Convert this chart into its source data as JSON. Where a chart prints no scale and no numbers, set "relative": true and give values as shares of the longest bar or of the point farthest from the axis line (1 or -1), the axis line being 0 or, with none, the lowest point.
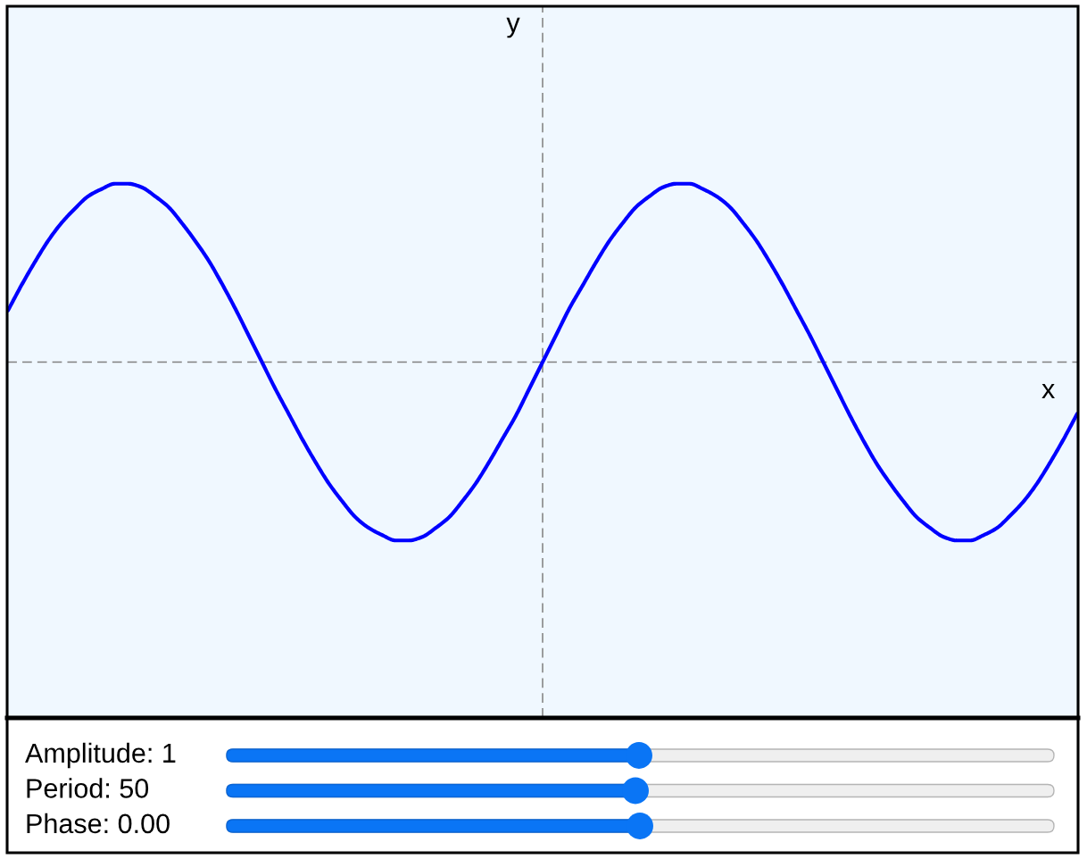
{
  "chart_data": {
    "type": "line",
    "relative": true,
    "xlabel": "x",
    "categories": [
      null,
      null,
      null,
      null,
      null,
      null,
      null,
      null,
      null,
      null,
      null,
      null,
      null,
      null,
      null,
      null,
      null,
      null,
      null,
      null,
      null,
      null,
      null,
      null,
      null,
      null,
      null,
      null,
      null,
      null,
      null,
      null,
      null,
      null,
      null,
      null,
      null,
      null,
      null,
      null,
      null,
      null,
      null,
      null,
      null,
      null,
      null,
      null,
      null,
      null,
      null,
      null,
      null,
      null,
      null,
      null,
      null,
      null,
      null,
      null,
      null,
      null,
      null,
      null,
      null,
      null,
      null,
      null,
      null,
      null,
      null,
      null,
      null,
      null,
      null,
      null,
      null,
      null,
      null,
      null,
      null
    ],
    "series": [
      {
        "color": "#0000ff",
        "values": [
          0.29,
          0.43,
          0.56,
          0.68,
          0.78,
          0.86,
          0.93,
          0.97,
          1.0,
          1.0,
          0.98,
          0.93,
          0.87,
          0.78,
          0.68,
          0.57,
          0.44,
          0.3,
          0.15,
          0.0,
          -0.15,
          -0.29,
          -0.43,
          -0.56,
          -0.68,
          -0.78,
          -0.87,
          -0.93,
          -0.97,
          -1.0,
          -1.0,
          -0.98,
          -0.93,
          -0.87,
          -0.78,
          -0.68,
          -0.56,
          -0.43,
          -0.3,
          -0.15,
          0.0,
          0.15,
          0.3,
          0.43,
          0.56,
          0.68,
          0.78,
          0.87,
          0.93,
          0.98,
          1.0,
          1.0,
          0.97,
          0.93,
          0.87,
          0.78,
          0.68,
          0.56,
          0.43,
          0.29,
          0.15,
          0.0,
          -0.15,
          -0.3,
          -0.44,
          -0.57,
          -0.68,
          -0.78,
          -0.87,
          -0.93,
          -0.98,
          -1.0,
          -1.0,
          -0.97,
          -0.93,
          -0.86,
          -0.78,
          -0.68,
          -0.56,
          -0.43,
          -0.29
        ]
      }
    ],
    "annotations": [
      "y",
      "Amplitude: 1",
      "Period: 50",
      "Phase: 0.00"
    ]
  }
}
